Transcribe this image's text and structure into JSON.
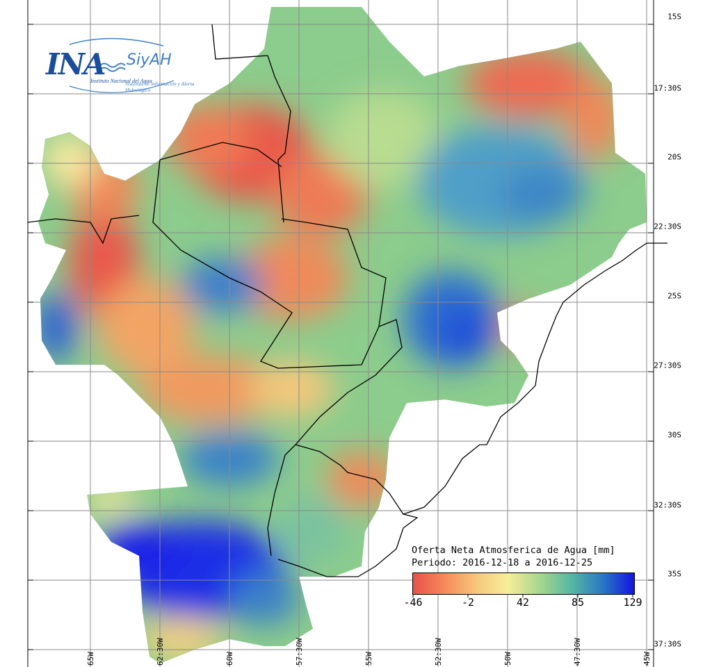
{
  "logo": {
    "ina": "INA",
    "siyah": "SiyAH",
    "institute": "Instituto Nacional del Agua",
    "system": "Sistemas de información y Alerta Hidrológico"
  },
  "legend": {
    "title": "Oferta Neta Atmosferica de Agua [mm]",
    "period": "Periodo: 2016-12-18 a 2016-12-25",
    "ticks": [
      "-46",
      "-2",
      "42",
      "85",
      "129"
    ],
    "colors": [
      "#e8514a",
      "#f58a5a",
      "#f5c77c",
      "#f7ee99",
      "#a8d78f",
      "#56b8a2",
      "#2a78c5",
      "#1414e0"
    ]
  },
  "lat_labels": [
    "15S",
    "17:30S",
    "20S",
    "22:30S",
    "25S",
    "27:30S",
    "30S",
    "32:30S",
    "35S",
    "37:30S"
  ],
  "lon_labels": [
    "65W",
    "62:30W",
    "60W",
    "57:30W",
    "55W",
    "52:30W",
    "50W",
    "47:30W",
    "45W"
  ]
}
